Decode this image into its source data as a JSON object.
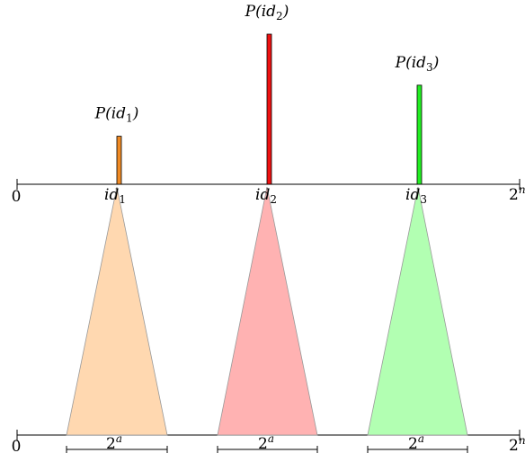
{
  "axis": {
    "start_label": "0",
    "end_label_base": "2",
    "end_label_exp": "n"
  },
  "items": [
    {
      "name": "id1",
      "id_base": "id",
      "id_sub": "1",
      "prob_label_base": "P(id",
      "prob_label_sub": "1",
      "prob_label_close": ")",
      "bar_level": 0.32,
      "bar_color": "#f08a24",
      "triangle_color": "#ffd8b0",
      "width_label_base": "2",
      "width_label_exp": "a"
    },
    {
      "name": "id2",
      "id_base": "id",
      "id_sub": "2",
      "prob_label_base": "P(id",
      "prob_label_sub": "2",
      "prob_label_close": ")",
      "bar_level": 1.0,
      "bar_color": "#ee1111",
      "triangle_color": "#ffb2b2",
      "width_label_base": "2",
      "width_label_exp": "a"
    },
    {
      "name": "id3",
      "id_base": "id",
      "id_sub": "3",
      "prob_label_base": "P(id",
      "prob_label_sub": "3",
      "prob_label_close": ")",
      "bar_level": 0.66,
      "bar_color": "#22ee22",
      "triangle_color": "#b2ffb2",
      "width_label_base": "2",
      "width_label_exp": "a"
    }
  ]
}
